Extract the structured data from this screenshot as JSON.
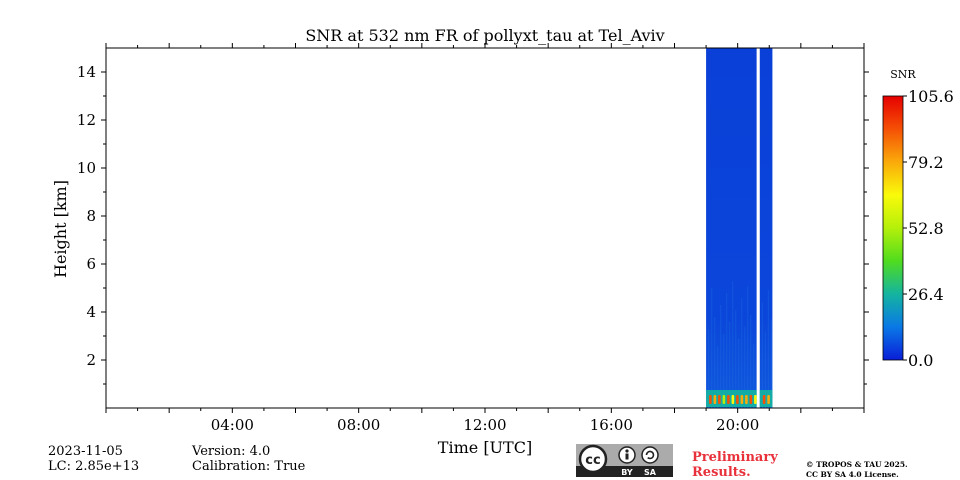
{
  "chart_data": {
    "type": "heatmap",
    "title": "SNR at 532 nm FR of pollyxt_tau at Tel_Aviv",
    "xlabel": "Time [UTC]",
    "ylabel": "Height [km]",
    "xlim_hours": [
      0,
      24
    ],
    "ylim_km": [
      0,
      15
    ],
    "xticks": [
      {
        "hour": 4,
        "label": "04:00"
      },
      {
        "hour": 8,
        "label": "08:00"
      },
      {
        "hour": 12,
        "label": "12:00"
      },
      {
        "hour": 16,
        "label": "16:00"
      },
      {
        "hour": 20,
        "label": "20:00"
      }
    ],
    "yticks": [
      {
        "km": 2,
        "label": "2"
      },
      {
        "km": 4,
        "label": "4"
      },
      {
        "km": 6,
        "label": "6"
      },
      {
        "km": 8,
        "label": "8"
      },
      {
        "km": 10,
        "label": "10"
      },
      {
        "km": 12,
        "label": "12"
      },
      {
        "km": 14,
        "label": "14"
      }
    ],
    "data_blocks": [
      {
        "start_hour": 19.0,
        "end_hour": 20.6,
        "low_snr_value": 5,
        "near_surface_peak": 95
      },
      {
        "start_hour": 20.7,
        "end_hour": 21.1,
        "low_snr_value": 5,
        "near_surface_peak": 100
      }
    ],
    "colorbar": {
      "label": "SNR",
      "min": 0.0,
      "max": 105.6,
      "tick_labels": [
        "0.0",
        "26.4",
        "52.8",
        "79.2",
        "105.6"
      ],
      "colors": [
        "#0a1ed8",
        "#0a78e6",
        "#14b4a0",
        "#50dc1e",
        "#b4f00a",
        "#fafa0a",
        "#faaa0a",
        "#f55005",
        "#e60000"
      ]
    }
  },
  "footer": {
    "date": "2023-11-05",
    "lc": "LC: 2.85e+13",
    "version": "Version: 4.0",
    "calibration": "Calibration: True",
    "license_badge": {
      "cc": "cc",
      "by": "BY",
      "sa": "SA"
    },
    "preliminary_line1": "Preliminary",
    "preliminary_line2": "Results.",
    "copyright_line1": "© TROPOS & TAU 2025.",
    "copyright_line2": "CC BY SA 4.0 License."
  }
}
